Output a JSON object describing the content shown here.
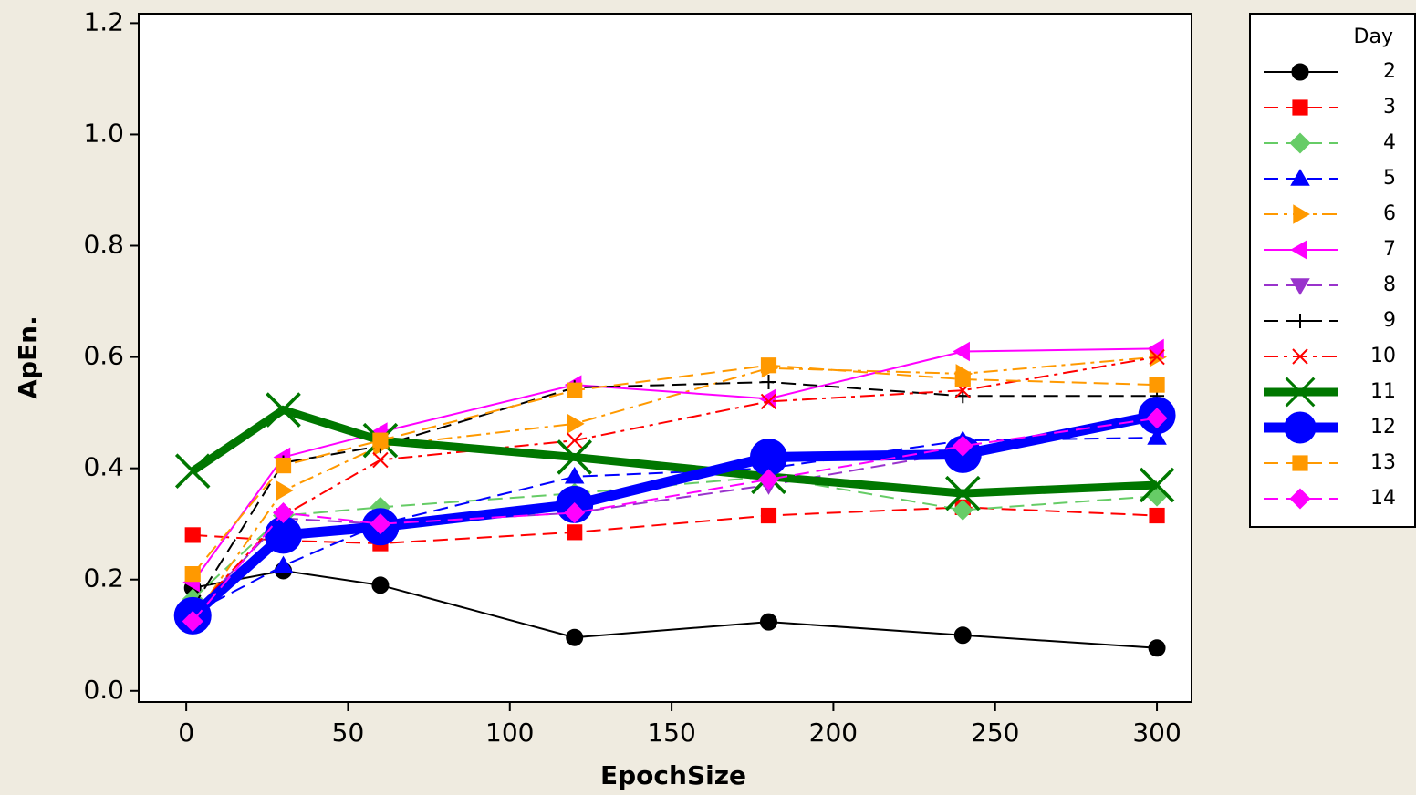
{
  "chart_data": {
    "type": "line",
    "x_label": "EpochSize",
    "y_label": "ApEn.",
    "legend_title": "Day",
    "x": [
      2,
      30,
      60,
      120,
      180,
      240,
      300
    ],
    "xlim": [
      -14.7,
      310.7
    ],
    "xticks": [
      0,
      50,
      100,
      150,
      200,
      250,
      300
    ],
    "ylim": [
      -0.02,
      1.217
    ],
    "yticks": [
      {
        "value": 0.0,
        "label": "0.0"
      },
      0.2,
      0.4,
      0.6,
      0.8,
      {
        "value": 1.0,
        "label": "1.0"
      },
      1.2
    ],
    "legend": "right",
    "series": [
      {
        "name": "2",
        "color": "#000000",
        "line": "solid",
        "marker": "circle",
        "values": [
          0.185,
          0.216,
          0.19,
          0.096,
          0.124,
          0.1,
          0.077
        ]
      },
      {
        "name": "3",
        "color": "#ff0000",
        "line": "dashed",
        "marker": "square",
        "values": [
          0.28,
          0.27,
          0.265,
          0.285,
          0.315,
          0.33,
          0.315
        ]
      },
      {
        "name": "4",
        "color": "#66cc66",
        "line": "dashed",
        "marker": "diamond",
        "values": [
          0.165,
          0.315,
          0.33,
          0.355,
          0.385,
          0.325,
          0.35
        ]
      },
      {
        "name": "5",
        "color": "#0000ff",
        "line": "dashed",
        "marker": "triangle-up",
        "values": [
          0.14,
          0.225,
          0.3,
          0.385,
          0.4,
          0.45,
          0.455
        ]
      },
      {
        "name": "6",
        "color": "#ff9900",
        "line": "dashdot",
        "marker": "triangle-right",
        "values": [
          0.13,
          0.36,
          0.44,
          0.48,
          0.58,
          0.57,
          0.6
        ]
      },
      {
        "name": "7",
        "color": "#ff00ff",
        "line": "solid",
        "marker": "triangle-left",
        "values": [
          0.195,
          0.42,
          0.465,
          0.55,
          0.525,
          0.61,
          0.615
        ]
      },
      {
        "name": "8",
        "color": "#9933cc",
        "line": "dashed",
        "marker": "triangle-down",
        "values": [
          0.14,
          0.31,
          0.3,
          0.32,
          0.37,
          0.43,
          0.5
        ]
      },
      {
        "name": "9",
        "color": "#000000",
        "line": "dashed",
        "marker": "plus",
        "values": [
          0.15,
          0.41,
          0.44,
          0.545,
          0.555,
          0.53,
          0.53
        ]
      },
      {
        "name": "10",
        "color": "#ff0000",
        "line": "dashdot",
        "marker": "x",
        "values": [
          0.14,
          0.315,
          0.415,
          0.45,
          0.52,
          0.54,
          0.6
        ]
      },
      {
        "name": "11",
        "color": "#007700",
        "line": "thick",
        "marker": "x",
        "values": [
          0.395,
          0.505,
          0.45,
          0.42,
          0.385,
          0.355,
          0.37
        ]
      },
      {
        "name": "12",
        "color": "#0000ff",
        "line": "thick",
        "marker": "circle",
        "values": [
          0.135,
          0.28,
          0.295,
          0.335,
          0.42,
          0.425,
          0.495
        ]
      },
      {
        "name": "13",
        "color": "#ff9900",
        "line": "dashed",
        "marker": "square",
        "values": [
          0.21,
          0.405,
          0.45,
          0.54,
          0.585,
          0.56,
          0.55
        ]
      },
      {
        "name": "14",
        "color": "#ff00ff",
        "line": "dashed",
        "marker": "diamond",
        "values": [
          0.125,
          0.32,
          0.3,
          0.32,
          0.38,
          0.44,
          0.49
        ]
      }
    ]
  }
}
